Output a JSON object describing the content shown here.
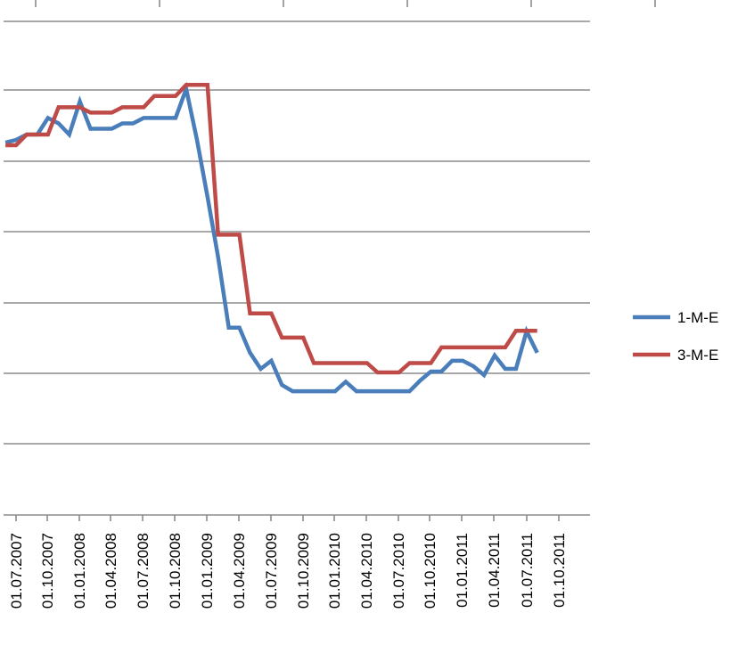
{
  "chart_data": {
    "type": "line",
    "title": "",
    "xlabel": "",
    "ylabel": "",
    "x_tick_labels": [
      "01.07.2007",
      "01.10.2007",
      "01.01.2008",
      "01.04.2008",
      "01.07.2008",
      "01.10.2008",
      "01.01.2009",
      "01.04.2009",
      "01.07.2009",
      "01.10.2009",
      "01.01.2010",
      "01.04.2010",
      "01.07.2010",
      "01.10.2010",
      "01.01.2011",
      "01.04.2011",
      "01.07.2011",
      "01.10.2011"
    ],
    "x_range": [
      "2007-06-01",
      "2011-12-01"
    ],
    "y_range_gridlines": 7,
    "grid": true,
    "legend_position": "right",
    "colors": {
      "1-M-E": "#4a7ebb",
      "3-M-E": "#be4b48",
      "grid": "#8c8c8c"
    },
    "series": [
      {
        "name": "1-M-E",
        "color": "#4a7ebb",
        "points": [
          [
            "2007-06-01",
            5.16
          ],
          [
            "2007-07-01",
            5.22
          ],
          [
            "2007-08-01",
            5.34
          ],
          [
            "2007-09-01",
            5.34
          ],
          [
            "2007-10-01",
            5.71
          ],
          [
            "2007-11-01",
            5.59
          ],
          [
            "2007-12-01",
            5.34
          ],
          [
            "2008-01-01",
            6.08
          ],
          [
            "2008-02-01",
            5.47
          ],
          [
            "2008-03-01",
            5.47
          ],
          [
            "2008-04-01",
            5.47
          ],
          [
            "2008-05-01",
            5.59
          ],
          [
            "2008-06-01",
            5.59
          ],
          [
            "2008-07-01",
            5.71
          ],
          [
            "2008-08-01",
            5.71
          ],
          [
            "2008-09-01",
            5.71
          ],
          [
            "2008-10-01",
            5.71
          ],
          [
            "2008-11-01",
            6.36
          ],
          [
            "2008-12-01",
            5.23
          ],
          [
            "2009-01-01",
            3.95
          ],
          [
            "2009-02-01",
            2.6
          ],
          [
            "2009-03-01",
            1.02
          ],
          [
            "2009-04-01",
            1.02
          ],
          [
            "2009-05-01",
            0.46
          ],
          [
            "2009-06-01",
            0.1
          ],
          [
            "2009-07-01",
            0.28
          ],
          [
            "2009-08-01",
            -0.26
          ],
          [
            "2009-09-01",
            -0.4
          ],
          [
            "2009-10-01",
            -0.4
          ],
          [
            "2009-11-01",
            -0.4
          ],
          [
            "2009-12-01",
            -0.4
          ],
          [
            "2010-01-01",
            -0.4
          ],
          [
            "2010-02-01",
            -0.19
          ],
          [
            "2010-03-01",
            -0.4
          ],
          [
            "2010-04-01",
            -0.4
          ],
          [
            "2010-05-01",
            -0.4
          ],
          [
            "2010-06-01",
            -0.4
          ],
          [
            "2010-07-01",
            -0.4
          ],
          [
            "2010-08-01",
            -0.4
          ],
          [
            "2010-09-01",
            -0.16
          ],
          [
            "2010-10-01",
            0.04
          ],
          [
            "2010-11-01",
            0.04
          ],
          [
            "2010-12-01",
            0.28
          ],
          [
            "2011-01-01",
            0.28
          ],
          [
            "2011-02-01",
            0.16
          ],
          [
            "2011-03-01",
            -0.04
          ],
          [
            "2011-04-01",
            0.4
          ],
          [
            "2011-05-01",
            0.1
          ],
          [
            "2011-06-01",
            0.1
          ],
          [
            "2011-07-01",
            0.94
          ],
          [
            "2011-08-01",
            0.46
          ]
        ]
      },
      {
        "name": "3-M-E",
        "color": "#be4b48",
        "points": [
          [
            "2007-06-01",
            5.1
          ],
          [
            "2007-07-01",
            5.1
          ],
          [
            "2007-08-01",
            5.34
          ],
          [
            "2007-09-01",
            5.34
          ],
          [
            "2007-10-01",
            5.34
          ],
          [
            "2007-11-01",
            5.95
          ],
          [
            "2007-12-01",
            5.95
          ],
          [
            "2008-01-01",
            5.95
          ],
          [
            "2008-02-01",
            5.83
          ],
          [
            "2008-03-01",
            5.83
          ],
          [
            "2008-04-01",
            5.83
          ],
          [
            "2008-05-01",
            5.95
          ],
          [
            "2008-06-01",
            5.95
          ],
          [
            "2008-07-01",
            5.95
          ],
          [
            "2008-08-01",
            6.2
          ],
          [
            "2008-09-01",
            6.2
          ],
          [
            "2008-10-01",
            6.2
          ],
          [
            "2008-11-01",
            6.45
          ],
          [
            "2008-12-01",
            6.45
          ],
          [
            "2009-01-01",
            6.45
          ],
          [
            "2009-02-01",
            3.1
          ],
          [
            "2009-03-01",
            3.1
          ],
          [
            "2009-04-01",
            3.1
          ],
          [
            "2009-05-01",
            1.34
          ],
          [
            "2009-06-01",
            1.34
          ],
          [
            "2009-07-01",
            1.34
          ],
          [
            "2009-08-01",
            0.8
          ],
          [
            "2009-09-01",
            0.8
          ],
          [
            "2009-10-01",
            0.8
          ],
          [
            "2009-11-01",
            0.23
          ],
          [
            "2009-12-01",
            0.23
          ],
          [
            "2010-01-01",
            0.23
          ],
          [
            "2010-02-01",
            0.23
          ],
          [
            "2010-03-01",
            0.23
          ],
          [
            "2010-04-01",
            0.23
          ],
          [
            "2010-05-01",
            0.02
          ],
          [
            "2010-06-01",
            0.02
          ],
          [
            "2010-07-01",
            0.02
          ],
          [
            "2010-08-01",
            0.23
          ],
          [
            "2010-09-01",
            0.23
          ],
          [
            "2010-10-01",
            0.23
          ],
          [
            "2010-11-01",
            0.58
          ],
          [
            "2010-12-01",
            0.58
          ],
          [
            "2011-01-01",
            0.58
          ],
          [
            "2011-02-01",
            0.58
          ],
          [
            "2011-03-01",
            0.58
          ],
          [
            "2011-04-01",
            0.58
          ],
          [
            "2011-05-01",
            0.58
          ],
          [
            "2011-06-01",
            0.95
          ],
          [
            "2011-07-01",
            0.95
          ],
          [
            "2011-08-01",
            0.95
          ]
        ]
      }
    ]
  }
}
